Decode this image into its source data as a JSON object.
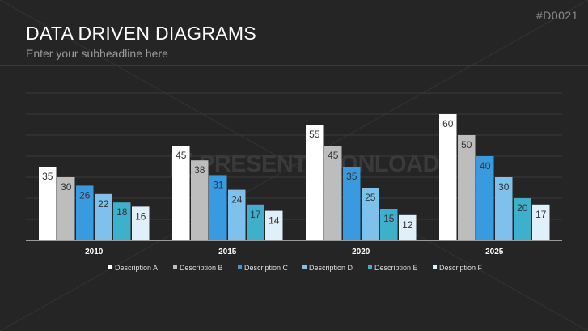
{
  "slide_id": "#D0021",
  "title": "DATA DRIVEN DIAGRAMS",
  "subtitle": "Enter your subheadline here",
  "watermark": "PRESENTATIONLOAD",
  "colors": {
    "background": "#252525",
    "series": [
      "#ffffff",
      "#bdbdbd",
      "#3a9ae0",
      "#7ec1ec",
      "#3fb0cc",
      "#dff0fa"
    ]
  },
  "chart_data": {
    "type": "bar",
    "title": "",
    "xlabel": "",
    "ylabel": "",
    "ylim": [
      0,
      70
    ],
    "grid": true,
    "legend_position": "bottom",
    "categories": [
      "2010",
      "2015",
      "2020",
      "2025"
    ],
    "series": [
      {
        "name": "Description A",
        "values": [
          35,
          45,
          55,
          60
        ]
      },
      {
        "name": "Description B",
        "values": [
          30,
          38,
          45,
          50
        ]
      },
      {
        "name": "Description C",
        "values": [
          26,
          31,
          35,
          40
        ]
      },
      {
        "name": "Description D",
        "values": [
          22,
          24,
          25,
          30
        ]
      },
      {
        "name": "Description E",
        "values": [
          18,
          17,
          15,
          20
        ]
      },
      {
        "name": "Description F",
        "values": [
          16,
          14,
          12,
          17
        ]
      }
    ]
  }
}
